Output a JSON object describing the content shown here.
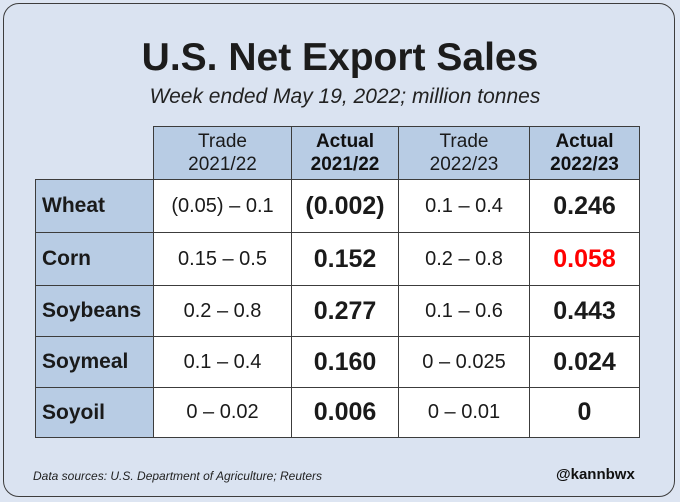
{
  "title": "U.S. Net Export Sales",
  "subtitle": "Week ended May 19, 2022; million tonnes",
  "headers": [
    {
      "line1": "Trade",
      "line2": "2021/22"
    },
    {
      "line1": "Actual",
      "line2": "2021/22"
    },
    {
      "line1": "Trade",
      "line2": "2022/23"
    },
    {
      "line1": "Actual",
      "line2": "2022/23"
    }
  ],
  "rows": [
    {
      "label": "Wheat",
      "trade_2122": "(0.05) – 0.1",
      "actual_2122": "(0.002)",
      "trade_2223": "0.1 – 0.4",
      "actual_2223": "0.246"
    },
    {
      "label": "Corn",
      "trade_2122": "0.15 – 0.5",
      "actual_2122": "0.152",
      "trade_2223": "0.2 – 0.8",
      "actual_2223": "0.058"
    },
    {
      "label": "Soybeans",
      "trade_2122": "0.2 – 0.8",
      "actual_2122": "0.277",
      "trade_2223": "0.1 – 0.6",
      "actual_2223": "0.443"
    },
    {
      "label": "Soymeal",
      "trade_2122": "0.1 – 0.4",
      "actual_2122": "0.160",
      "trade_2223": "0 – 0.025",
      "actual_2223": "0.024"
    },
    {
      "label": "Soyoil",
      "trade_2122": "0 – 0.02",
      "actual_2122": "0.006",
      "trade_2223": "0 – 0.01",
      "actual_2223": "0"
    }
  ],
  "colors": {
    "background": "#dae3f1",
    "header_fill": "#b8cce4",
    "highlight": "#ff0000"
  },
  "highlight_cell": "Corn actual 2022/23",
  "footer": {
    "source": "Data sources: U.S. Department of Agriculture; Reuters",
    "handle": "@kannbwx"
  }
}
